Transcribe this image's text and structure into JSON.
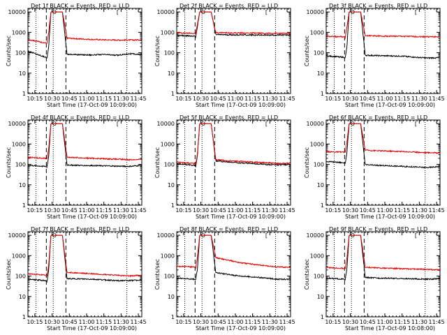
{
  "figure": {
    "panel_count": 9
  },
  "chart_data": [
    {
      "type": "line",
      "title": "Det 1f BLACK = Events, RED = LLD",
      "xlabel": "Start Time (17-Oct-09 10:09:00)",
      "ylabel": "Counts/sec",
      "x_ticks": [
        "10:15",
        "10:30",
        "10:45",
        "11:00",
        "11:15",
        "11:30",
        "11:45"
      ],
      "y_ticks": [
        "1",
        "10",
        "100",
        "1000",
        "10000"
      ],
      "y_scale": "log",
      "ylim": [
        1,
        15000
      ],
      "xlim": [
        "10:09",
        "11:48"
      ],
      "vlines_dotted": [
        "10:16",
        "10:31",
        "11:35"
      ],
      "vlines_dashed": [
        "10:25",
        "10:42"
      ],
      "markers": [
        {
          "label": "O",
          "x": "10:32"
        },
        {
          "label": "[",
          "x": "11:27"
        }
      ],
      "series": [
        {
          "name": "Events",
          "color": "#000000",
          "levels": [
            120,
            60,
            60,
            10000,
            85,
            80,
            78,
            82,
            75,
            90,
            80
          ]
        },
        {
          "name": "LLD",
          "color": "#e00000",
          "levels": [
            450,
            300,
            300,
            10000,
            520,
            480,
            450,
            430,
            420,
            420,
            430
          ]
        }
      ]
    },
    {
      "type": "line",
      "title": "Det 2f BLACK = Events, RED = LLD",
      "xlabel": "Start Time (17-Oct-09 10:09:00)",
      "ylabel": "Counts/sec",
      "x_ticks": [
        "10:15",
        "10:30",
        "10:45",
        "11:00",
        "11:15",
        "11:30",
        "11:45"
      ],
      "y_ticks": [
        "1",
        "10",
        "100",
        "1000",
        "10000"
      ],
      "y_scale": "log",
      "ylim": [
        1,
        15000
      ],
      "xlim": [
        "10:09",
        "11:48"
      ],
      "vlines_dotted": [
        "10:16",
        "10:31",
        "11:35"
      ],
      "vlines_dashed": [
        "10:25",
        "10:42"
      ],
      "markers": [
        {
          "label": "O",
          "x": "10:32"
        },
        {
          "label": "[",
          "x": "11:27"
        }
      ],
      "series": [
        {
          "name": "Events",
          "color": "#000000",
          "levels": [
            700,
            650,
            650,
            10000,
            780,
            760,
            750,
            740,
            730,
            740,
            730
          ]
        },
        {
          "name": "LLD",
          "color": "#e00000",
          "levels": [
            950,
            900,
            900,
            10000,
            980,
            950,
            930,
            920,
            900,
            900,
            880
          ]
        }
      ]
    },
    {
      "type": "line",
      "title": "Det 3f BLACK = Events, RED = LLD",
      "xlabel": "Start Time (17-Oct-09 10:09:00)",
      "ylabel": "Counts/sec",
      "x_ticks": [
        "10:15",
        "10:30",
        "10:45",
        "11:00",
        "11:15",
        "11:30",
        "11:45"
      ],
      "y_ticks": [
        "1",
        "10",
        "100",
        "1000",
        "10000"
      ],
      "y_scale": "log",
      "ylim": [
        1,
        15000
      ],
      "xlim": [
        "10:09",
        "11:48"
      ],
      "vlines_dotted": [
        "10:16",
        "10:31",
        "11:35"
      ],
      "vlines_dashed": [
        "10:25",
        "10:42"
      ],
      "markers": [
        {
          "label": "O",
          "x": "10:32"
        },
        {
          "label": "[",
          "x": "11:27"
        }
      ],
      "series": [
        {
          "name": "Events",
          "color": "#000000",
          "levels": [
            70,
            60,
            60,
            10000,
            75,
            72,
            70,
            68,
            60,
            55,
            58
          ]
        },
        {
          "name": "LLD",
          "color": "#e00000",
          "levels": [
            650,
            600,
            600,
            10000,
            700,
            660,
            650,
            640,
            620,
            610,
            600
          ]
        }
      ]
    },
    {
      "type": "line",
      "title": "Det 4f BLACK = Events, RED = LLD",
      "xlabel": "Start Time (17-Oct-09 10:09:00)",
      "ylabel": "Counts/sec",
      "x_ticks": [
        "10:15",
        "10:30",
        "10:45",
        "11:00",
        "11:15",
        "11:30",
        "11:45"
      ],
      "y_ticks": [
        "1",
        "10",
        "100",
        "1000",
        "10000"
      ],
      "y_scale": "log",
      "ylim": [
        1,
        15000
      ],
      "xlim": [
        "10:09",
        "11:48"
      ],
      "vlines_dotted": [
        "10:16",
        "10:31",
        "11:35"
      ],
      "vlines_dashed": [
        "10:25",
        "10:42"
      ],
      "markers": [
        {
          "label": "O",
          "x": "10:32"
        },
        {
          "label": "[",
          "x": "11:27"
        }
      ],
      "series": [
        {
          "name": "Events",
          "color": "#000000",
          "levels": [
            90,
            80,
            80,
            10000,
            95,
            90,
            88,
            85,
            82,
            80,
            90
          ]
        },
        {
          "name": "LLD",
          "color": "#e00000",
          "levels": [
            220,
            200,
            200,
            10000,
            230,
            210,
            200,
            190,
            180,
            170,
            175
          ]
        }
      ]
    },
    {
      "type": "line",
      "title": "Det 5f BLACK = Events, RED = LLD",
      "xlabel": "Start Time (17-Oct-09 10:09:00)",
      "ylabel": "Counts/sec",
      "x_ticks": [
        "10:15",
        "10:30",
        "10:45",
        "11:00",
        "11:15",
        "11:30",
        "11:45"
      ],
      "y_ticks": [
        "1",
        "10",
        "100",
        "1000",
        "10000"
      ],
      "y_scale": "log",
      "ylim": [
        1,
        15000
      ],
      "xlim": [
        "10:09",
        "11:48"
      ],
      "vlines_dotted": [
        "10:16",
        "10:31",
        "11:35"
      ],
      "vlines_dashed": [
        "10:25",
        "10:42"
      ],
      "markers": [
        {
          "label": "O",
          "x": "10:32"
        },
        {
          "label": "[",
          "x": "11:27"
        }
      ],
      "series": [
        {
          "name": "Events",
          "color": "#000000",
          "levels": [
            110,
            90,
            90,
            10000,
            150,
            130,
            120,
            110,
            100,
            95,
            100
          ]
        },
        {
          "name": "LLD",
          "color": "#e00000",
          "levels": [
            130,
            110,
            110,
            10000,
            170,
            150,
            140,
            130,
            120,
            110,
            115
          ]
        }
      ]
    },
    {
      "type": "line",
      "title": "Det 6f BLACK = Events, RED = LLD",
      "xlabel": "Start Time (17-Oct-09 10:09:00)",
      "ylabel": "Counts/sec",
      "x_ticks": [
        "10:15",
        "10:30",
        "10:45",
        "11:00",
        "11:15",
        "11:30",
        "11:45"
      ],
      "y_ticks": [
        "1",
        "10",
        "100",
        "1000",
        "10000"
      ],
      "y_scale": "log",
      "ylim": [
        1,
        15000
      ],
      "xlim": [
        "10:09",
        "11:48"
      ],
      "vlines_dotted": [
        "10:16",
        "10:31",
        "11:35"
      ],
      "vlines_dashed": [
        "10:25",
        "10:42"
      ],
      "markers": [
        {
          "label": "O",
          "x": "10:32"
        },
        {
          "label": "[",
          "x": "11:27"
        }
      ],
      "series": [
        {
          "name": "Events",
          "color": "#000000",
          "levels": [
            140,
            120,
            120,
            10000,
            95,
            90,
            85,
            80,
            75,
            70,
            80
          ]
        },
        {
          "name": "LLD",
          "color": "#e00000",
          "levels": [
            420,
            400,
            400,
            10000,
            500,
            470,
            450,
            430,
            400,
            380,
            370
          ]
        }
      ]
    },
    {
      "type": "line",
      "title": "Det 7f BLACK = Events, RED = LLD",
      "xlabel": "Start Time (17-Oct-09 10:09:00)",
      "ylabel": "Counts/sec",
      "x_ticks": [
        "10:15",
        "10:30",
        "10:45",
        "11:00",
        "11:15",
        "11:30",
        "11:45"
      ],
      "y_ticks": [
        "1",
        "10",
        "100",
        "1000",
        "10000"
      ],
      "y_scale": "log",
      "ylim": [
        1,
        15000
      ],
      "xlim": [
        "10:09",
        "11:48"
      ],
      "vlines_dotted": [
        "10:16",
        "10:31",
        "11:35"
      ],
      "vlines_dashed": [
        "10:25",
        "10:42"
      ],
      "markers": [
        {
          "label": "O",
          "x": "10:32"
        },
        {
          "label": "[",
          "x": "11:27"
        }
      ],
      "series": [
        {
          "name": "Events",
          "color": "#000000",
          "levels": [
            70,
            60,
            60,
            10000,
            75,
            72,
            70,
            65,
            60,
            60,
            65
          ]
        },
        {
          "name": "LLD",
          "color": "#e00000",
          "levels": [
            130,
            110,
            110,
            10000,
            150,
            140,
            130,
            120,
            110,
            100,
            110
          ]
        }
      ]
    },
    {
      "type": "line",
      "title": "Det 8f BLACK = Events, RED = LLD",
      "xlabel": "Start Time (17-Oct-09 10:09:00)",
      "ylabel": "Counts/sec",
      "x_ticks": [
        "10:15",
        "10:30",
        "10:45",
        "11:00",
        "11:15",
        "11:30",
        "11:45"
      ],
      "y_ticks": [
        "1",
        "10",
        "100",
        "1000",
        "10000"
      ],
      "y_scale": "log",
      "ylim": [
        1,
        15000
      ],
      "xlim": [
        "10:09",
        "11:48"
      ],
      "vlines_dotted": [
        "10:16",
        "10:31",
        "11:35"
      ],
      "vlines_dashed": [
        "10:25",
        "10:42"
      ],
      "markers": [
        {
          "label": "O",
          "x": "10:32"
        },
        {
          "label": "[",
          "x": "11:27"
        }
      ],
      "series": [
        {
          "name": "Events",
          "color": "#000000",
          "levels": [
            80,
            70,
            70,
            10000,
            150,
            120,
            100,
            90,
            80,
            70,
            70
          ]
        },
        {
          "name": "LLD",
          "color": "#e00000",
          "levels": [
            300,
            280,
            280,
            10000,
            800,
            600,
            450,
            380,
            320,
            280,
            270
          ]
        }
      ]
    },
    {
      "type": "line",
      "title": "Det 9f BLACK = Events, RED = LLD",
      "xlabel": "Start Time (17-Oct-09 10:08:00)",
      "ylabel": "Counts/sec",
      "x_ticks": [
        "10:15",
        "10:30",
        "10:45",
        "11:00",
        "11:15",
        "11:30",
        "11:45"
      ],
      "y_ticks": [
        "1",
        "10",
        "100",
        "1000",
        "10000"
      ],
      "y_scale": "log",
      "ylim": [
        1,
        15000
      ],
      "xlim": [
        "10:09",
        "11:48"
      ],
      "vlines_dotted": [
        "10:16",
        "10:31",
        "11:35"
      ],
      "vlines_dashed": [
        "10:25",
        "10:42"
      ],
      "markers": [
        {
          "label": "O",
          "x": "10:32"
        },
        {
          "label": "[",
          "x": "11:27"
        }
      ],
      "series": [
        {
          "name": "Events",
          "color": "#000000",
          "levels": [
            80,
            70,
            70,
            10000,
            85,
            80,
            78,
            75,
            72,
            70,
            75
          ]
        },
        {
          "name": "LLD",
          "color": "#e00000",
          "levels": [
            260,
            240,
            240,
            10000,
            270,
            250,
            240,
            230,
            220,
            210,
            200
          ]
        }
      ]
    }
  ]
}
